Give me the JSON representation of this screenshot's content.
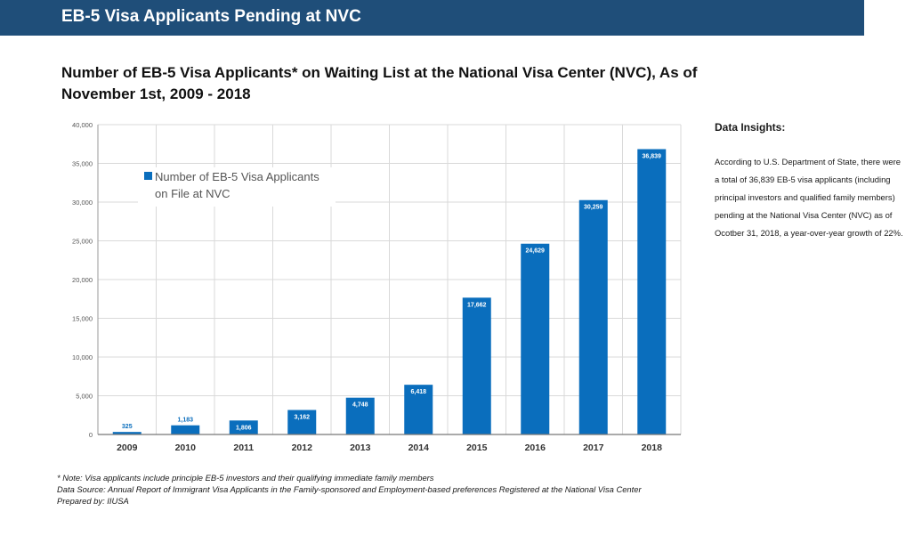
{
  "header": {
    "title": "EB-5 Visa Applicants Pending at NVC"
  },
  "chart_data": {
    "type": "bar",
    "title": "Number of EB-5 Visa Applicants* on Waiting List at the National Visa Center (NVC), As of November 1st, 2009 - 2018",
    "categories": [
      "2009",
      "2010",
      "2011",
      "2012",
      "2013",
      "2014",
      "2015",
      "2016",
      "2017",
      "2018"
    ],
    "series": [
      {
        "name": "Number of EB-5 Visa Applicants on File at NVC",
        "values": [
          325,
          1183,
          1806,
          3162,
          4748,
          6418,
          17662,
          24629,
          30259,
          36839
        ],
        "labels": [
          "325",
          "1,183",
          "1,806",
          "3,162",
          "4,748",
          "6,418",
          "17,662",
          "24,629",
          "30,259",
          "36,839"
        ]
      }
    ],
    "ylim": [
      0,
      40000
    ],
    "yticks": [
      0,
      5000,
      10000,
      15000,
      20000,
      25000,
      30000,
      35000,
      40000
    ],
    "ytick_labels": [
      "0",
      "5,000",
      "10,000",
      "15,000",
      "20,000",
      "25,000",
      "30,000",
      "35,000",
      "40,000"
    ],
    "xlabel": "",
    "ylabel": "",
    "grid": true,
    "legend": "top-left",
    "bar_color": "#0a6ebd"
  },
  "insights": {
    "title": "Data Insights:",
    "body": "According to U.S. Department of State, there were a total of 36,839 EB-5 visa applicants (including principal investors and qualified family members) pending at the National Visa Center (NVC) as of Ocotber 31, 2018, a year-over-year growth of 22%."
  },
  "notes": {
    "note": "* Note: Visa applicants include principle EB-5 investors and their qualifying immediate family members",
    "source": "Data Source: Annual Report of Immigrant Visa Applicants in the Family-sponsored and Employment-based preferences Registered at the National Visa Center",
    "prepared": "Prepared by: IIUSA"
  }
}
